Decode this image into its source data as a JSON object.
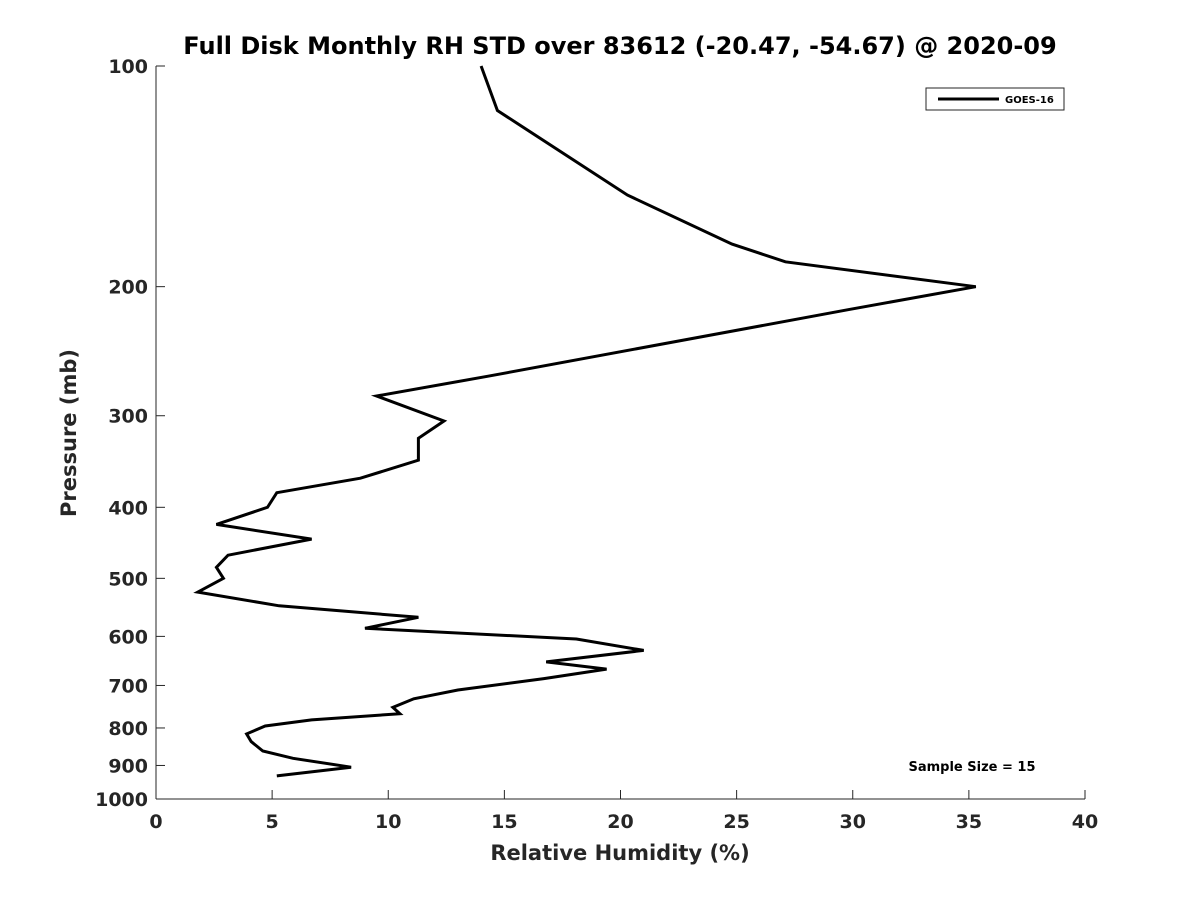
{
  "chart_data": {
    "type": "line",
    "title": "Full Disk Monthly RH STD over 83612 (-20.47, -54.67) @ 2020-09",
    "xlabel": "Relative Humidity (%)",
    "ylabel": "Pressure (mb)",
    "xlim": [
      0,
      40
    ],
    "ylim": [
      100,
      1000
    ],
    "y_scale": "log",
    "y_reversed": true,
    "x_ticks": [
      0,
      5,
      10,
      15,
      20,
      25,
      30,
      35,
      40
    ],
    "x_tick_labels": [
      "0",
      "5",
      "10",
      "15",
      "20",
      "25",
      "30",
      "35",
      "40"
    ],
    "y_ticks": [
      100,
      200,
      300,
      400,
      500,
      600,
      700,
      800,
      900,
      1000
    ],
    "y_tick_labels": [
      "100",
      "200",
      "300",
      "400",
      "500",
      "600",
      "700",
      "800",
      "900",
      "1000"
    ],
    "grid": false,
    "legend_position": "top-right",
    "annotation": "Sample Size = 15",
    "series": [
      {
        "name": "GOES-16",
        "color": "#000000",
        "x": [
          14.0,
          14.7,
          20.3,
          24.8,
          27.1,
          35.3,
          29.8,
          14.3,
          9.5,
          12.4,
          11.3,
          11.3,
          8.8,
          5.2,
          4.8,
          2.6,
          6.7,
          3.1,
          2.6,
          2.9,
          1.8,
          5.3,
          11.3,
          9.0,
          18.1,
          21.0,
          16.8,
          19.4,
          16.7,
          13.0,
          11.1,
          10.2,
          10.5,
          6.7,
          4.7,
          3.9,
          4.1,
          4.6,
          5.9,
          8.4,
          5.2
        ],
        "y": [
          100,
          115,
          150,
          175,
          185,
          200,
          215,
          265,
          282,
          305,
          322,
          345,
          365,
          382,
          400,
          422,
          442,
          465,
          483,
          500,
          522,
          545,
          565,
          585,
          605,
          627,
          650,
          665,
          685,
          710,
          730,
          750,
          765,
          780,
          795,
          815,
          835,
          860,
          880,
          905,
          930
        ]
      }
    ]
  }
}
